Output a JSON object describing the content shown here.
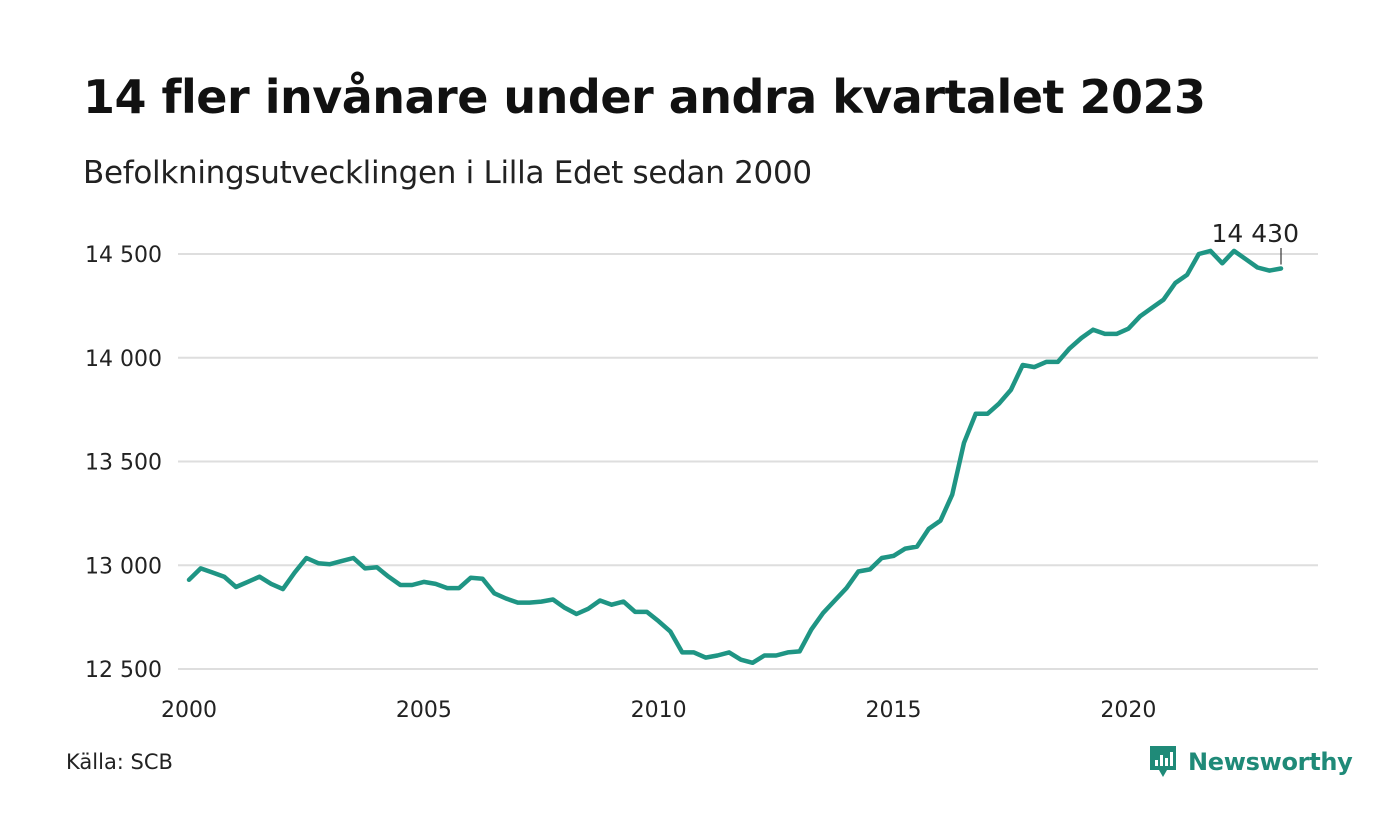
{
  "title": "14 fler invånare under andra kvartalet 2023",
  "subtitle": "Befolkningsutvecklingen i Lilla Edet sedan 2000",
  "source": "Källa: SCB",
  "brand": {
    "name": "Newsworthy",
    "icon": "newsworthy-logo-icon",
    "color": "#1f8a78"
  },
  "chart_data": {
    "type": "line",
    "title": "14 fler invånare under andra kvartalet 2023",
    "subtitle": "Befolkningsutvecklingen i Lilla Edet sedan 2000",
    "xlabel": "",
    "ylabel": "",
    "xlim": [
      2000,
      2024.5
    ],
    "ylim": [
      12470,
      14600
    ],
    "grid": true,
    "line_color": "#1f9584",
    "x_ticks": [
      2000,
      2005,
      2010,
      2015,
      2020
    ],
    "x_tick_labels": [
      "2000",
      "2005",
      "2010",
      "2015",
      "2020"
    ],
    "y_ticks": [
      12500,
      13000,
      13500,
      14000,
      14500
    ],
    "y_tick_labels": [
      "12 500",
      "13 000",
      "13 500",
      "14 000",
      "14 500"
    ],
    "end_label": "14 430",
    "series": [
      {
        "start": "2000 Q1",
        "values": [
          12930,
          12985,
          12965,
          12945,
          12895,
          12920,
          12945,
          12910,
          12885,
          12965,
          13035,
          13010,
          13005,
          13020,
          13035,
          12985,
          12990,
          12945,
          12905,
          12905,
          12920,
          12910,
          12890,
          12890,
          12940,
          12935,
          12865,
          12840,
          12820,
          12820,
          12825,
          12835,
          12795,
          12765,
          12790,
          12830,
          12810,
          12825,
          12775,
          12775,
          12730,
          12680,
          12580,
          12580,
          12555,
          12565,
          12580,
          12545,
          12530,
          12565,
          12565,
          12580,
          12585,
          12690,
          12770,
          12830,
          12890,
          12970,
          12980,
          13035,
          13045,
          13080,
          13090,
          13175,
          13215,
          13340,
          13590,
          13730,
          13730,
          13780,
          13845,
          13965,
          13955,
          13980,
          13980,
          14045,
          14095,
          14135,
          14115,
          14115,
          14140,
          14200,
          14240,
          14280,
          14360,
          14400,
          14500,
          14515,
          14455,
          14515,
          14475,
          14435,
          14420,
          14430
        ]
      }
    ]
  }
}
